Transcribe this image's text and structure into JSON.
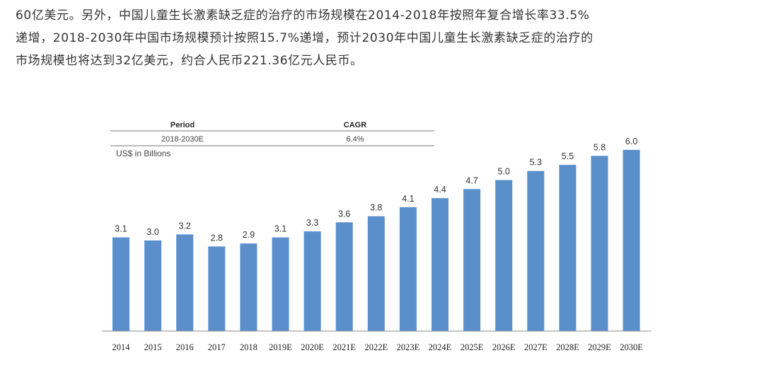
{
  "article": {
    "lines": [
      "60亿美元。另外，中国儿童生长激素缺乏症的治疗的市场规模在2014-2018年按照年复合增长率33.5%",
      "递增，2018-2030年中国市场规模预计按照15.7%递增，预计2030年中国儿童生长激素缺乏症的治疗的",
      "市场规模也将达到32亿美元，约合人民币221.36亿元人民币。"
    ]
  },
  "colors": {
    "bar": "#5b8fcc",
    "axis": "#888888",
    "text": "#333333"
  },
  "chart_data": {
    "type": "bar",
    "title": "",
    "xlabel": "",
    "ylabel": "US$ in Billions",
    "ylim": [
      0,
      6.0
    ],
    "grid": false,
    "cagr_table": {
      "headers": [
        "Period",
        "CAGR"
      ],
      "rows": [
        [
          "2018-2030E",
          "6.4%"
        ]
      ]
    },
    "categories": [
      "2014",
      "2015",
      "2016",
      "2017",
      "2018",
      "2019E",
      "2020E",
      "2021E",
      "2022E",
      "2023E",
      "2024E",
      "2025E",
      "2026E",
      "2027E",
      "2028E",
      "2029E",
      "2030E"
    ],
    "values": [
      3.1,
      3.0,
      3.2,
      2.8,
      2.9,
      3.1,
      3.3,
      3.6,
      3.8,
      4.1,
      4.4,
      4.7,
      5.0,
      5.3,
      5.5,
      5.8,
      6.0
    ],
    "value_labels": [
      "3.1",
      "3.0",
      "3.2",
      "2.8",
      "2.9",
      "3.1",
      "3.3",
      "3.6",
      "3.8",
      "4.1",
      "4.4",
      "4.7",
      "5.0",
      "5.3",
      "5.5",
      "5.8",
      "6.0"
    ]
  }
}
